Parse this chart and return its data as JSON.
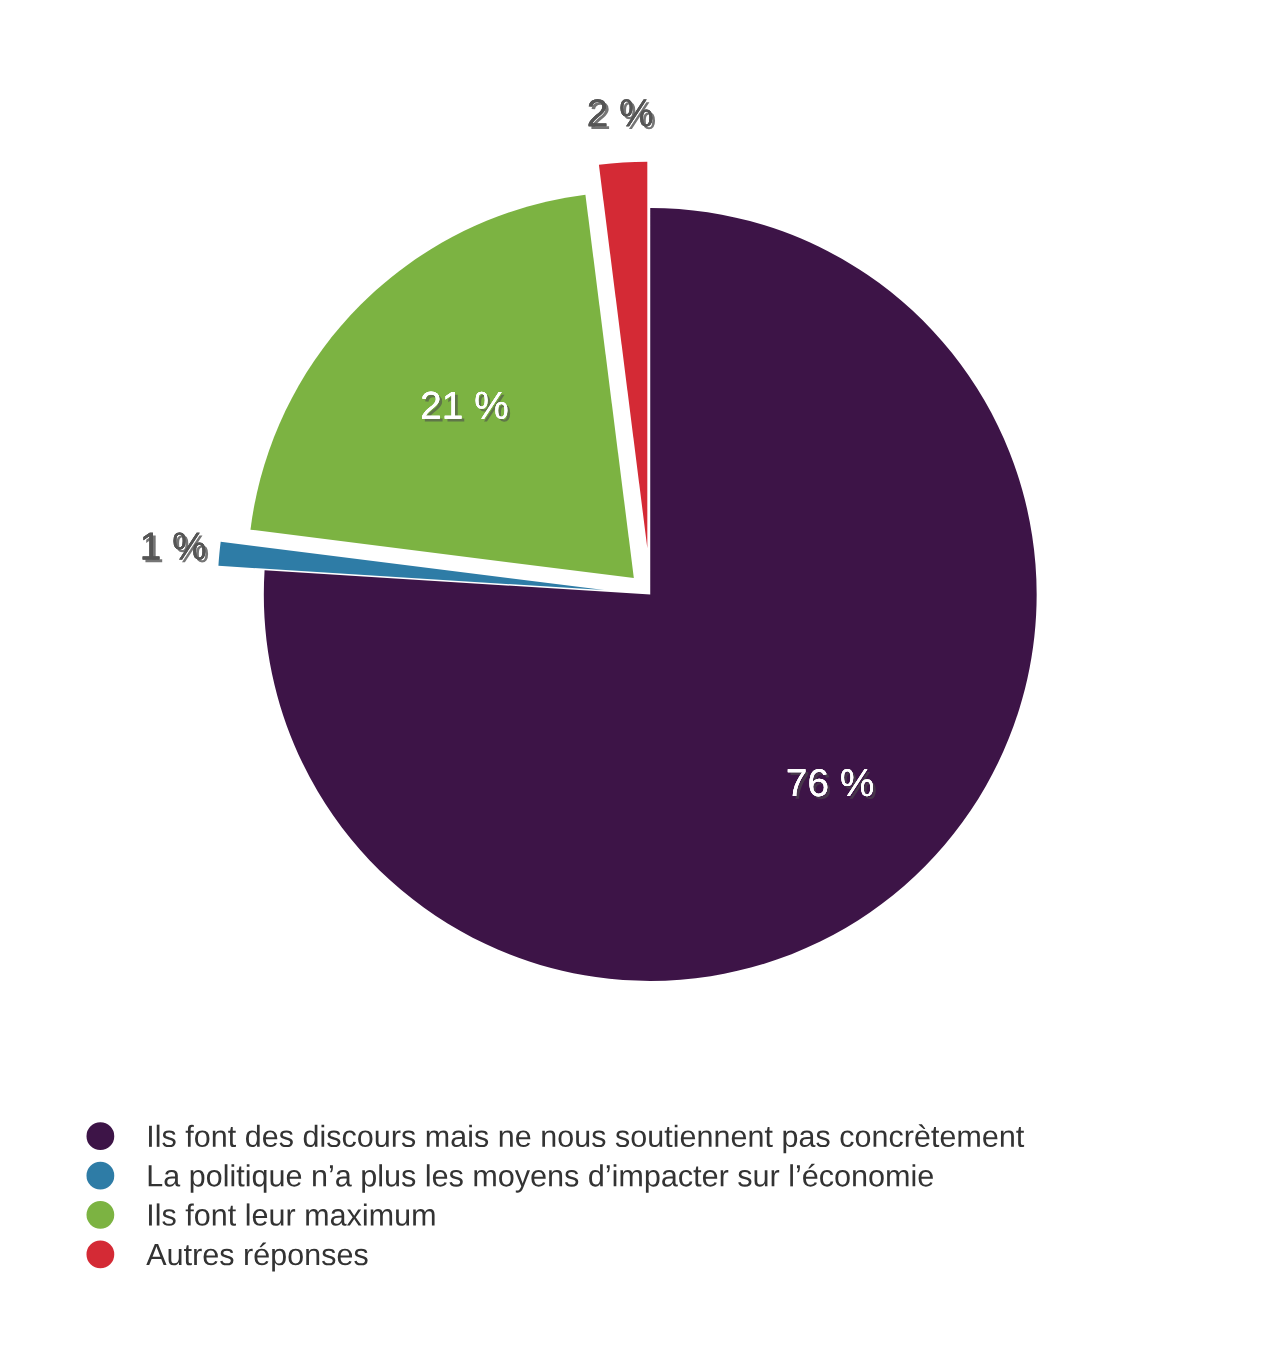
{
  "chart_data": {
    "type": "pie",
    "categories": [
      "Ils font des discours mais ne nous soutiennent pas concrètement",
      "La politique n’a plus les moyens d’impacter sur l’économie",
      "Ils font leur maximum",
      "Autres réponses"
    ],
    "values": [
      76,
      1,
      21,
      2
    ],
    "colors": [
      "#3d1447",
      "#2e7ca6",
      "#7cb342",
      "#d42a35"
    ],
    "value_labels": [
      "76 %",
      "1 %",
      "21 %",
      "2 %"
    ],
    "legend": "bottom"
  }
}
